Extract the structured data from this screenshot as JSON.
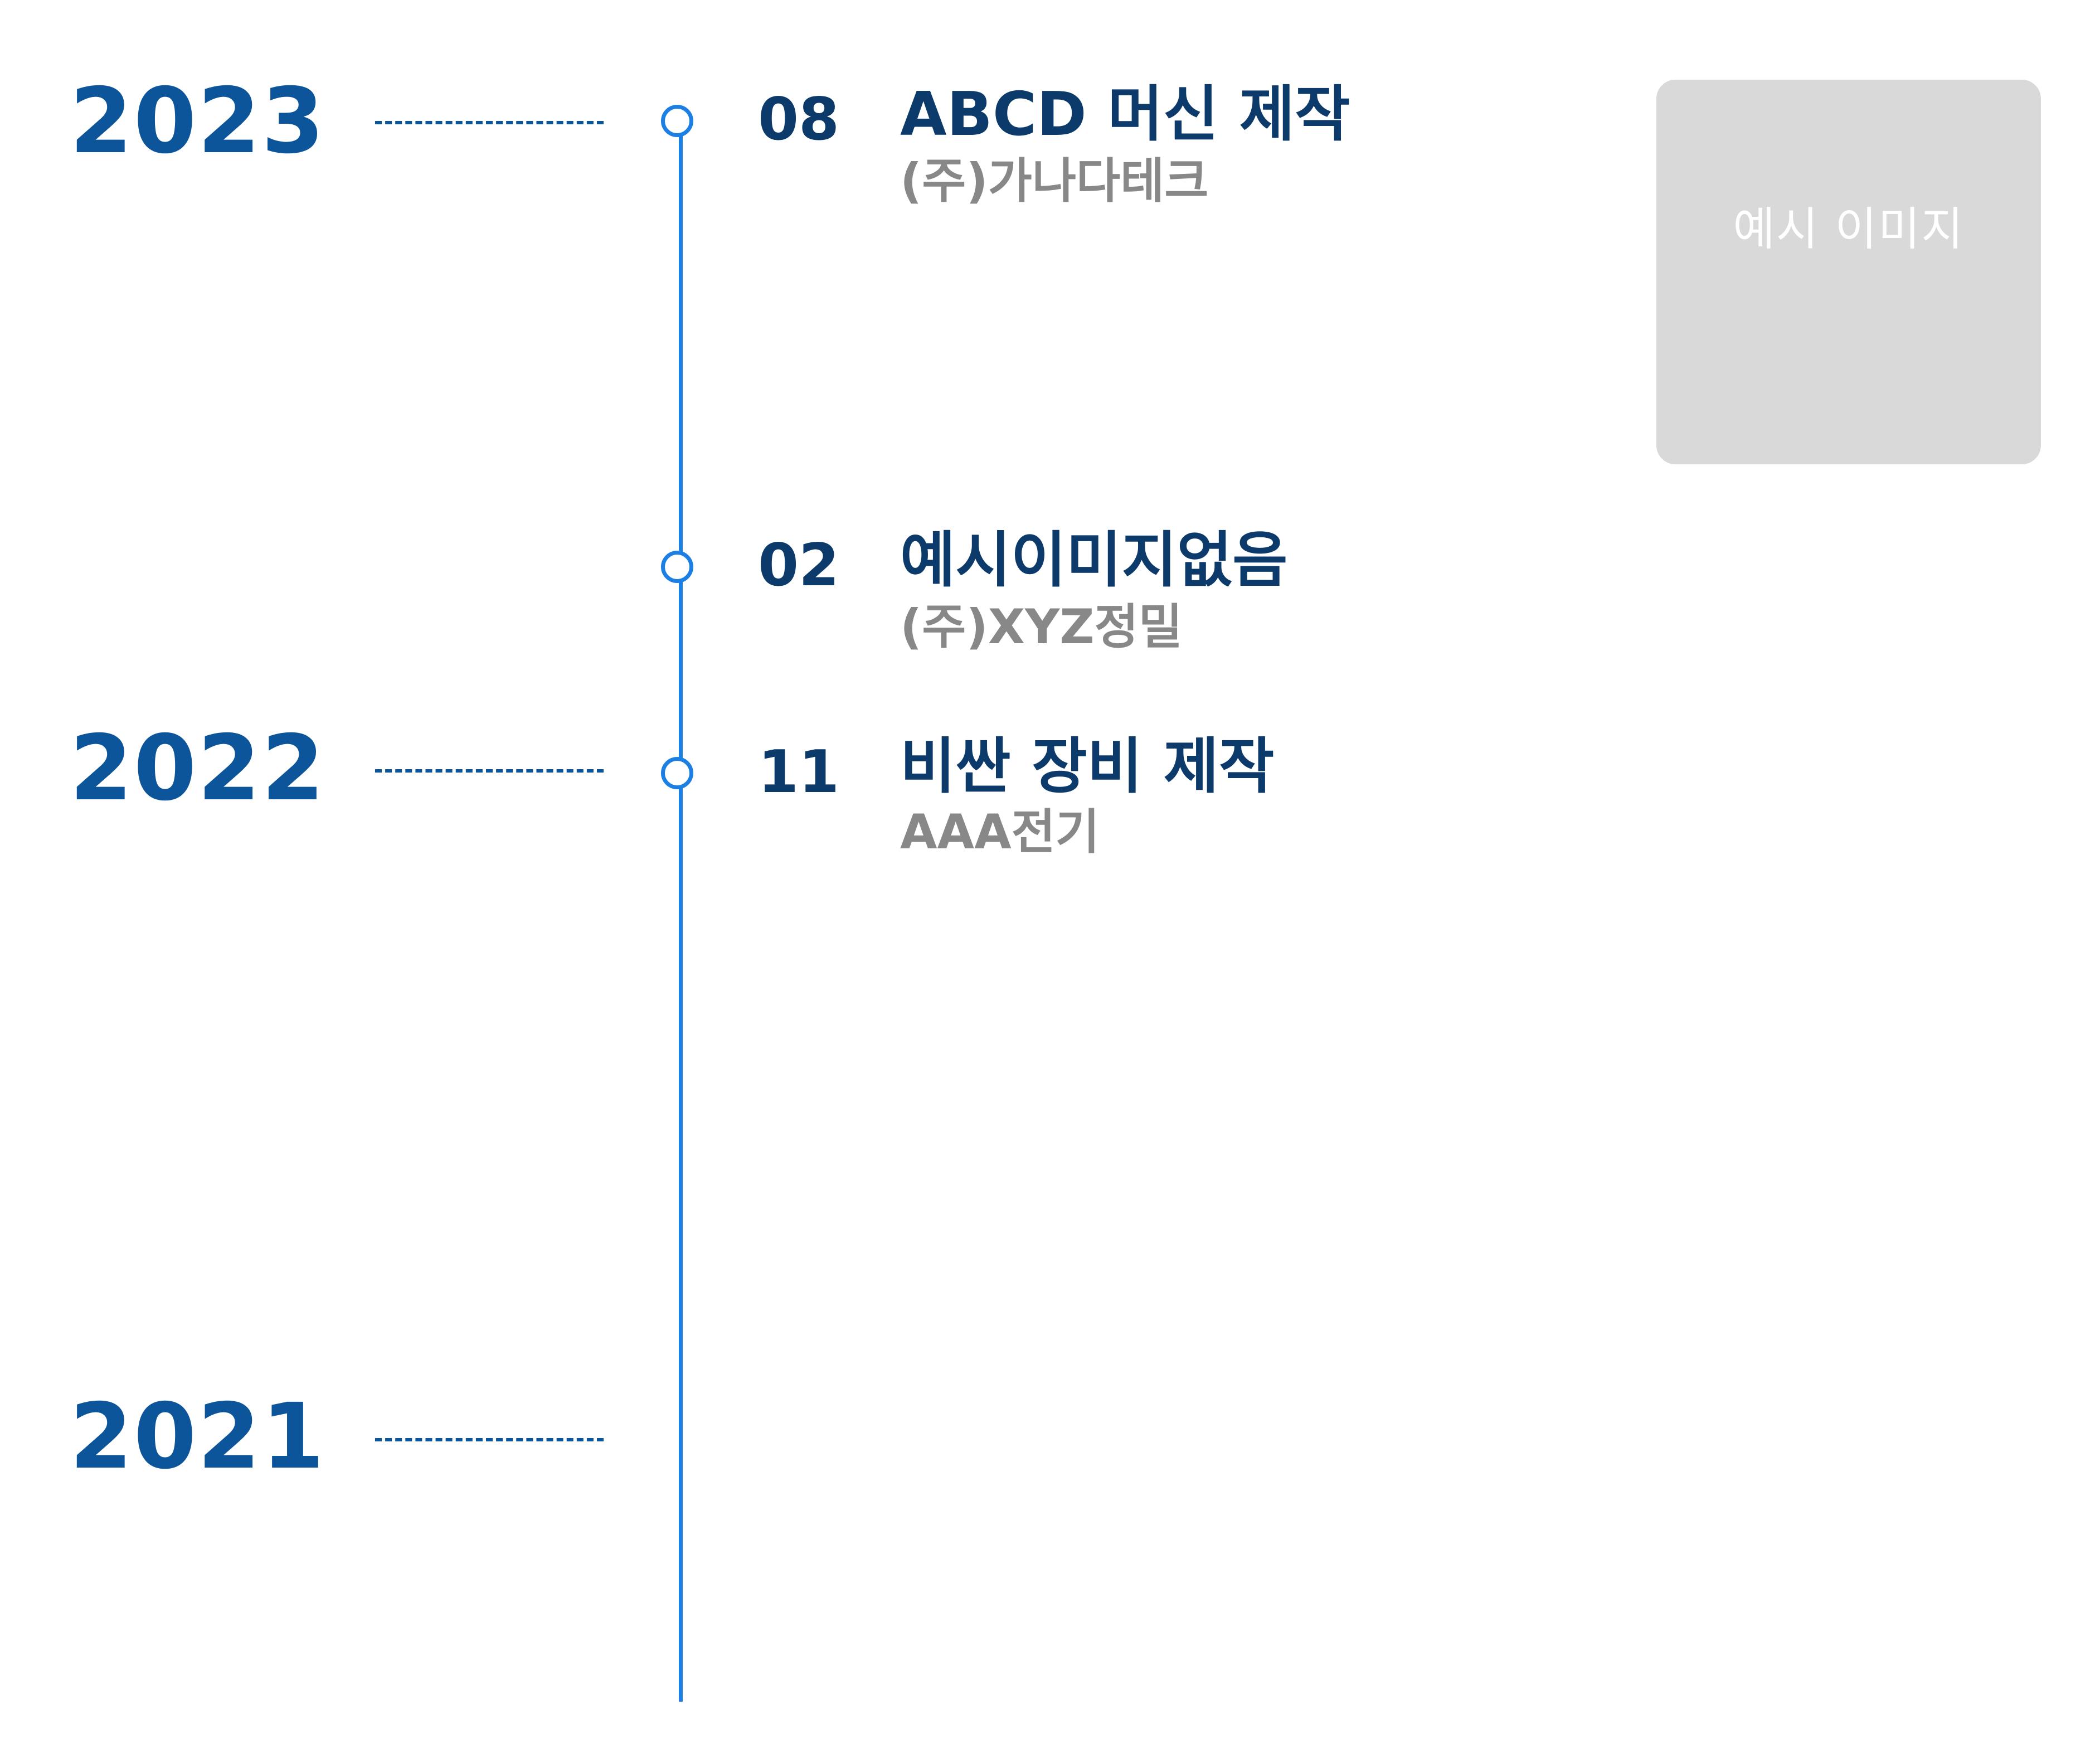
{
  "timeline": {
    "years": [
      {
        "label": "2023"
      },
      {
        "label": "2022"
      },
      {
        "label": "2021"
      }
    ],
    "events": [
      {
        "month": "08",
        "title": "ABCD 머신 제작",
        "company": "(주)가나다테크",
        "image_placeholder": "예시 이미지"
      },
      {
        "month": "02",
        "title": "예시이미지없음",
        "company": "(주)XYZ정밀"
      },
      {
        "month": "11",
        "title": "비싼 장비 제작",
        "company": "AAA전기"
      }
    ]
  },
  "colors": {
    "year_text": "#0d559a",
    "timeline_line": "#1c7fe3",
    "title_text": "#0b3a6b",
    "company_text": "#888888",
    "placeholder_bg": "#d9d9d9"
  }
}
